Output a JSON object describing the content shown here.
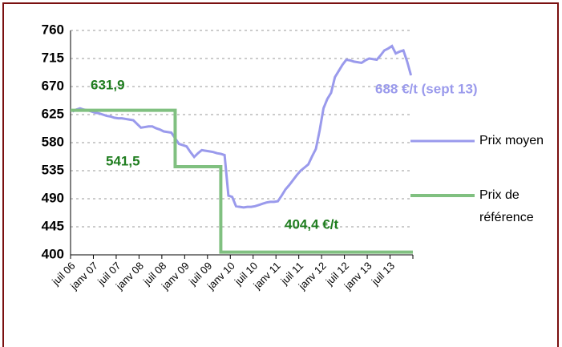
{
  "chart_data": {
    "type": "line",
    "categories": [
      "juil 06",
      null,
      null,
      null,
      null,
      null,
      "janv 07",
      null,
      null,
      null,
      null,
      null,
      "juil 07",
      null,
      null,
      null,
      null,
      null,
      "janv 08",
      null,
      null,
      null,
      null,
      null,
      "juil 08",
      null,
      null,
      null,
      null,
      null,
      "janv 09",
      null,
      null,
      null,
      null,
      null,
      "juil 09",
      null,
      null,
      null,
      null,
      null,
      "janv 10",
      null,
      null,
      null,
      null,
      null,
      "juil 10",
      null,
      null,
      null,
      null,
      null,
      "janv 11",
      null,
      null,
      null,
      null,
      null,
      "juil 11",
      null,
      null,
      null,
      null,
      null,
      "janv 12",
      null,
      null,
      null,
      null,
      null,
      "juil 12",
      null,
      null,
      null,
      null,
      null,
      "janv 13",
      null,
      null,
      null,
      null,
      null,
      "juil 13",
      null,
      null,
      null,
      null,
      null
    ],
    "series": [
      {
        "name": "Prix moyen",
        "color": "#9a9aec",
        "step": false,
        "values": [
          630,
          633,
          635,
          633,
          632,
          630,
          628,
          627,
          625,
          623,
          622,
          620,
          619,
          619,
          618,
          617,
          616,
          610,
          604,
          605,
          606,
          606,
          603,
          601,
          598,
          597,
          596,
          587,
          578,
          576,
          574,
          565,
          557,
          563,
          568,
          567,
          566,
          565,
          563,
          562,
          560,
          495,
          493,
          478,
          477,
          476,
          477,
          477,
          478,
          480,
          482,
          484,
          485,
          485,
          486,
          495,
          505,
          512,
          520,
          528,
          535,
          540,
          545,
          558,
          570,
          600,
          635,
          650,
          660,
          685,
          695,
          705,
          713,
          712,
          710,
          709,
          708,
          712,
          715,
          714,
          713,
          720,
          728,
          731,
          735,
          723,
          726,
          728,
          710,
          688
        ]
      },
      {
        "name": "Prix de référence",
        "color": "#80c080",
        "step": true,
        "values": [
          631.9,
          631.9,
          631.9,
          631.9,
          631.9,
          631.9,
          631.9,
          631.9,
          631.9,
          631.9,
          631.9,
          631.9,
          631.9,
          631.9,
          631.9,
          631.9,
          631.9,
          631.9,
          631.9,
          631.9,
          631.9,
          631.9,
          631.9,
          631.9,
          631.9,
          631.9,
          631.9,
          631.9,
          541.5,
          541.5,
          541.5,
          541.5,
          541.5,
          541.5,
          541.5,
          541.5,
          541.5,
          541.5,
          541.5,
          541.5,
          404.4,
          404.4,
          404.4,
          404.4,
          404.4,
          404.4,
          404.4,
          404.4,
          404.4,
          404.4,
          404.4,
          404.4,
          404.4,
          404.4,
          404.4,
          404.4,
          404.4,
          404.4,
          404.4,
          404.4,
          404.4,
          404.4,
          404.4,
          404.4,
          404.4,
          404.4,
          404.4,
          404.4,
          404.4,
          404.4,
          404.4,
          404.4,
          404.4,
          404.4,
          404.4,
          404.4,
          404.4,
          404.4,
          404.4,
          404.4,
          404.4,
          404.4,
          404.4,
          404.4,
          404.4,
          404.4,
          404.4,
          404.4,
          404.4,
          404.4
        ]
      }
    ],
    "annotations": [
      {
        "text": "631,9",
        "color": "#1f7d1f"
      },
      {
        "text": "541,5",
        "color": "#1f7d1f"
      },
      {
        "text": "404,4 €/t",
        "color": "#1f7d1f"
      },
      {
        "text": "688 €/t (sept 13)",
        "color": "#9a9aec"
      }
    ],
    "ylim": [
      400,
      760
    ],
    "yticks": [
      400,
      445,
      490,
      535,
      580,
      625,
      670,
      715,
      760
    ],
    "grid": true
  }
}
